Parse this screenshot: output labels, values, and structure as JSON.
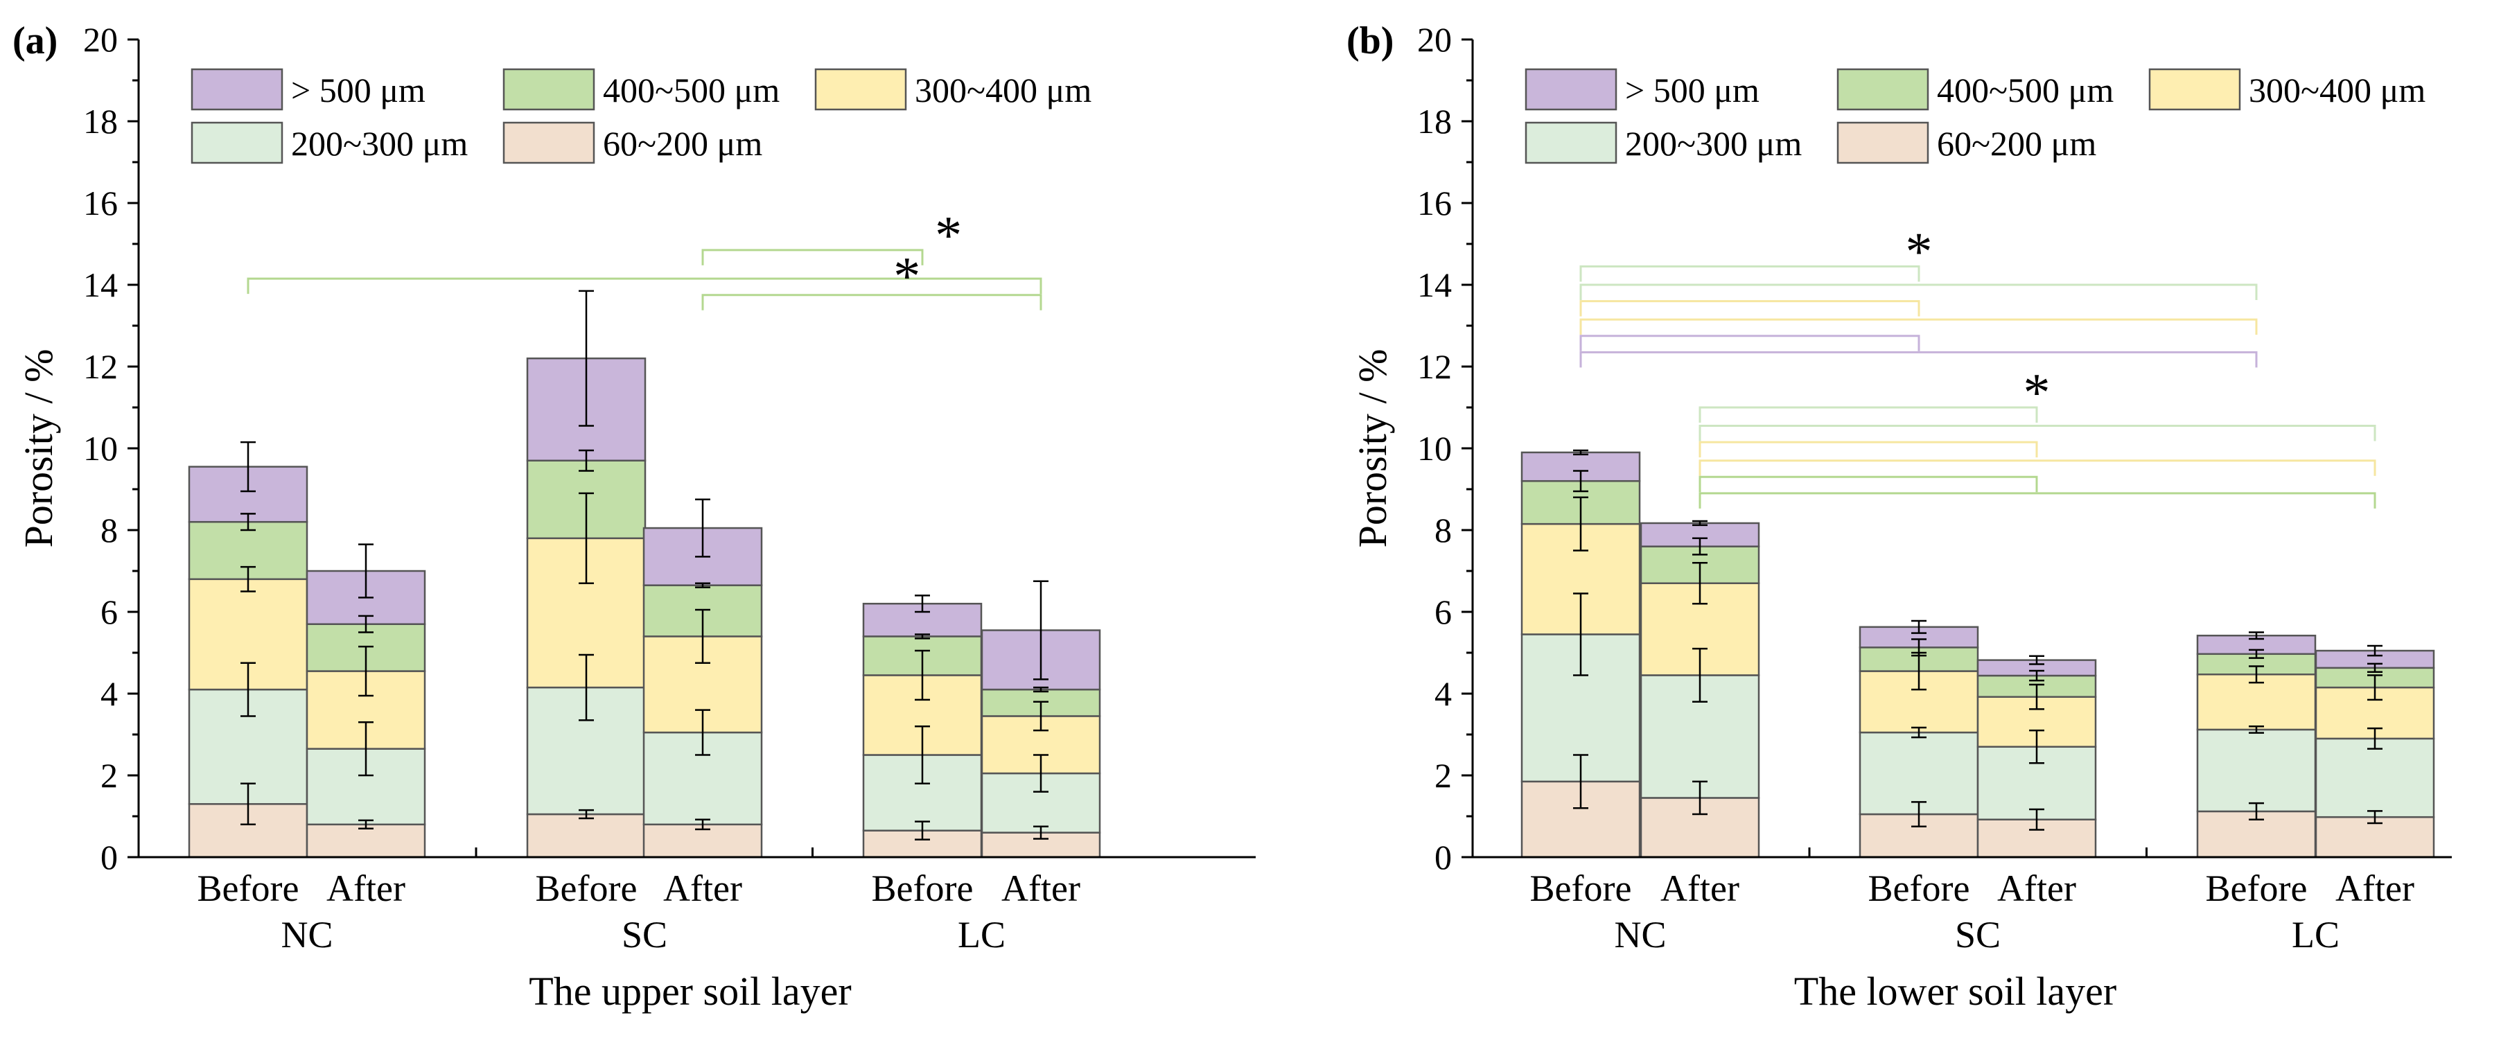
{
  "colors": {
    "c60_200": "#F2DFCE",
    "c200_300": "#DCEDDC",
    "c300_400": "#FEEEB1",
    "c400_500": "#C2DFA8",
    "c500": "#C9B6DA",
    "bar_edge": "#555555",
    "brk_green": "#B4D890",
    "brk_green_light": "#CDE6C2",
    "brk_yellow": "#F6E6A0",
    "brk_purple": "#C6B2DA"
  },
  "legend": [
    {
      "key": "c500",
      "label": "> 500 μm"
    },
    {
      "key": "c400_500",
      "label": "400~500 μm"
    },
    {
      "key": "c300_400",
      "label": "300~400 μm"
    },
    {
      "key": "c200_300",
      "label": "200~300 μm"
    },
    {
      "key": "c60_200",
      "label": "60~200 μm"
    }
  ],
  "chart_data": [
    {
      "type": "bar",
      "stacked": true,
      "panel_label": "(a)",
      "xlabel": "The upper soil layer",
      "ylabel": "Porosity / %",
      "ylim": [
        0,
        20
      ],
      "yticks": [
        "0",
        "2",
        "4",
        "6",
        "8",
        "10",
        "12",
        "14",
        "16",
        "18",
        "20"
      ],
      "groups": [
        "NC",
        "SC",
        "LC"
      ],
      "categories": [
        "Before",
        "After",
        "Before",
        "After",
        "Before",
        "After"
      ],
      "series": [
        {
          "name": "60~200 μm",
          "key": "c60_200",
          "values": [
            1.3,
            0.8,
            1.05,
            0.8,
            0.65,
            0.6
          ],
          "errors": [
            0.5,
            0.1,
            0.1,
            0.12,
            0.22,
            0.15
          ]
        },
        {
          "name": "200~300 μm",
          "key": "c200_300",
          "values": [
            2.8,
            1.85,
            3.1,
            2.25,
            1.85,
            1.45
          ],
          "errors": [
            0.65,
            0.65,
            0.8,
            0.55,
            0.7,
            0.45
          ]
        },
        {
          "name": "300~400 μm",
          "key": "c300_400",
          "values": [
            2.7,
            1.9,
            3.65,
            2.35,
            1.95,
            1.4
          ],
          "errors": [
            0.3,
            0.6,
            1.1,
            0.65,
            0.6,
            0.35
          ]
        },
        {
          "name": "400~500 μm",
          "key": "c400_500",
          "values": [
            1.4,
            1.15,
            1.9,
            1.25,
            0.95,
            0.65
          ],
          "errors": [
            0.2,
            0.2,
            0.25,
            0.05,
            0.05,
            0.05
          ]
        },
        {
          "name": "> 500 μm",
          "key": "c500",
          "values": [
            1.35,
            1.3,
            2.5,
            1.4,
            0.8,
            1.45
          ],
          "errors": [
            0.6,
            0.65,
            1.65,
            0.7,
            0.2,
            1.2
          ]
        }
      ],
      "significance": [
        {
          "from": 3,
          "to": 4,
          "y": 14.85,
          "color": "brk_green",
          "star": true
        },
        {
          "from": 0,
          "to": 5,
          "y": 14.15,
          "color": "brk_green",
          "star": false
        },
        {
          "from": 3,
          "to": 5,
          "y": 13.75,
          "color": "brk_green",
          "star": false
        }
      ],
      "stars": [
        {
          "text": "*",
          "x": 4.22,
          "y": 15.25
        },
        {
          "text": "*",
          "x": 3.93,
          "y": 14.25
        }
      ]
    },
    {
      "type": "bar",
      "stacked": true,
      "panel_label": "(b)",
      "xlabel": "The lower soil layer",
      "ylabel": "Porosity / %",
      "ylim": [
        0,
        20
      ],
      "yticks": [
        "0",
        "2",
        "4",
        "6",
        "8",
        "10",
        "12",
        "14",
        "16",
        "18",
        "20"
      ],
      "groups": [
        "NC",
        "SC",
        "LC"
      ],
      "categories": [
        "Before",
        "After",
        "Before",
        "After",
        "Before",
        "After"
      ],
      "series": [
        {
          "name": "60~200 μm",
          "key": "c60_200",
          "values": [
            1.85,
            1.45,
            1.05,
            0.92,
            1.12,
            0.98
          ],
          "errors": [
            0.65,
            0.4,
            0.3,
            0.25,
            0.2,
            0.15
          ]
        },
        {
          "name": "200~300 μm",
          "key": "c200_300",
          "values": [
            3.6,
            3.0,
            2.0,
            1.78,
            2.0,
            1.92
          ],
          "errors": [
            1.0,
            0.65,
            0.12,
            0.4,
            0.08,
            0.25
          ]
        },
        {
          "name": "300~400 μm",
          "key": "c300_400",
          "values": [
            2.7,
            2.25,
            1.5,
            1.22,
            1.35,
            1.25
          ],
          "errors": [
            0.65,
            0.5,
            0.45,
            0.3,
            0.2,
            0.3
          ]
        },
        {
          "name": "400~500 μm",
          "key": "c400_500",
          "values": [
            1.05,
            0.9,
            0.58,
            0.52,
            0.5,
            0.48
          ],
          "errors": [
            0.25,
            0.2,
            0.2,
            0.12,
            0.1,
            0.1
          ]
        },
        {
          "name": "> 500 μm",
          "key": "c500",
          "values": [
            0.7,
            0.57,
            0.5,
            0.38,
            0.45,
            0.42
          ],
          "errors": [
            0.05,
            0.05,
            0.15,
            0.1,
            0.08,
            0.12
          ]
        }
      ],
      "significance": [
        {
          "from": 0,
          "to": 2,
          "y": 14.45,
          "color": "brk_green_light",
          "star": true
        },
        {
          "from": 0,
          "to": 4,
          "y": 14.0,
          "color": "brk_green_light",
          "star": false
        },
        {
          "from": 0,
          "to": 2,
          "y": 13.6,
          "color": "brk_yellow",
          "star": false
        },
        {
          "from": 0,
          "to": 4,
          "y": 13.15,
          "color": "brk_yellow",
          "star": false
        },
        {
          "from": 0,
          "to": 2,
          "y": 12.75,
          "color": "brk_purple",
          "star": false
        },
        {
          "from": 0,
          "to": 4,
          "y": 12.35,
          "color": "brk_purple",
          "star": false
        },
        {
          "from": 1,
          "to": 3,
          "y": 11.0,
          "color": "brk_green_light",
          "star": true
        },
        {
          "from": 1,
          "to": 5,
          "y": 10.55,
          "color": "brk_green_light",
          "star": false
        },
        {
          "from": 1,
          "to": 3,
          "y": 10.15,
          "color": "brk_yellow",
          "star": false
        },
        {
          "from": 1,
          "to": 5,
          "y": 9.7,
          "color": "brk_yellow",
          "star": false
        },
        {
          "from": 1,
          "to": 3,
          "y": 9.3,
          "color": "brk_green",
          "star": false
        },
        {
          "from": 1,
          "to": 5,
          "y": 8.9,
          "color": "brk_green",
          "star": false
        }
      ],
      "stars": [
        {
          "text": "*",
          "x": 2.0,
          "y": 14.85
        },
        {
          "text": "*",
          "x": 3.0,
          "y": 11.4
        }
      ]
    }
  ]
}
